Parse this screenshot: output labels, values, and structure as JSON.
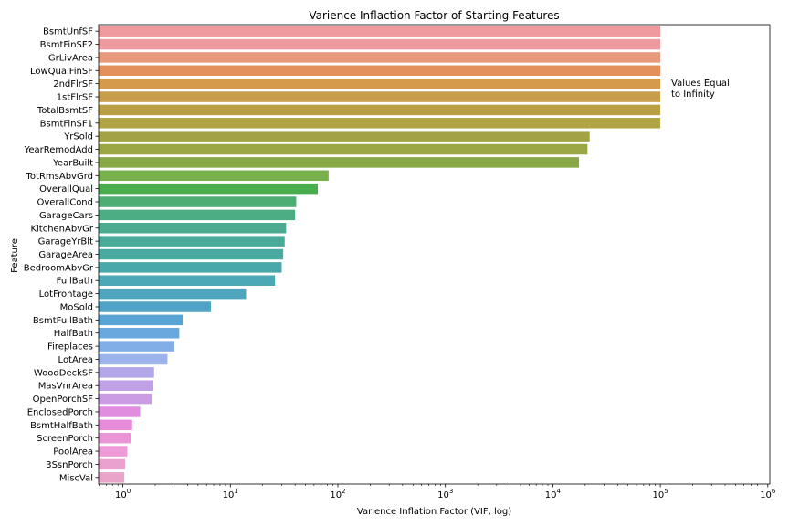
{
  "chart_data": {
    "type": "bar",
    "orientation": "horizontal",
    "title": "Varience Inflaction Factor of Starting Features",
    "xlabel": "Varience Inflation Factor (VIF, log)",
    "ylabel": "Feature",
    "xscale": "log",
    "xlim": [
      0.6,
      1000000
    ],
    "xticks": [
      {
        "value": 1,
        "base": "10",
        "exp": "0"
      },
      {
        "value": 10,
        "base": "10",
        "exp": "1"
      },
      {
        "value": 100,
        "base": "10",
        "exp": "2"
      },
      {
        "value": 1000,
        "base": "10",
        "exp": "3"
      },
      {
        "value": 10000,
        "base": "10",
        "exp": "4"
      },
      {
        "value": 100000,
        "base": "10",
        "exp": "5"
      },
      {
        "value": 1000000,
        "base": "10",
        "exp": "6"
      }
    ],
    "annotation": {
      "lines": [
        "Values Equal",
        "to Infinity"
      ]
    },
    "categories": [
      "BsmtUnfSF",
      "BsmtFinSF2",
      "GrLivArea",
      "LowQualFinSF",
      "2ndFlrSF",
      "1stFlrSF",
      "TotalBsmtSF",
      "BsmtFinSF1",
      "YrSold",
      "YearRemodAdd",
      "YearBuilt",
      "TotRmsAbvGrd",
      "OverallQual",
      "OverallCond",
      "GarageCars",
      "KitchenAbvGr",
      "GarageYrBlt",
      "GarageArea",
      "BedroomAbvGr",
      "FullBath",
      "LotFrontage",
      "MoSold",
      "BsmtFullBath",
      "HalfBath",
      "Fireplaces",
      "LotArea",
      "WoodDeckSF",
      "MasVnrArea",
      "OpenPorchSF",
      "EnclosedPorch",
      "BsmtHalfBath",
      "ScreenPorch",
      "PoolArea",
      "3SsnPorch",
      "MiscVal"
    ],
    "values": [
      100000,
      100000,
      100000,
      100000,
      100000,
      100000,
      100000,
      100000,
      22000,
      21000,
      17500,
      82,
      65,
      41,
      40,
      33,
      32,
      31,
      30,
      26,
      14,
      6.6,
      3.6,
      3.35,
      3.0,
      2.6,
      1.95,
      1.9,
      1.85,
      1.45,
      1.22,
      1.18,
      1.1,
      1.05,
      1.03
    ],
    "colors": [
      "#ee9a9e",
      "#ed9a9e",
      "#e89a7c",
      "#e3905b",
      "#d69a4b",
      "#c79d4a",
      "#baa044",
      "#b0a445",
      "#a3a245",
      "#9ba744",
      "#89a848",
      "#78b04c",
      "#49ad4d",
      "#4ead72",
      "#4cad84",
      "#4baa90",
      "#4aaa99",
      "#4aa9a1",
      "#49a8aa",
      "#4ba8b4",
      "#4ea5bd",
      "#50a3c4",
      "#58a4d4",
      "#68a8de",
      "#82aee7",
      "#9cb2eb",
      "#b3a7e8",
      "#c0a0e6",
      "#cb9ce4",
      "#e08de0",
      "#e68cd9",
      "#e996d7",
      "#ee9ad6",
      "#eba1cf",
      "#e8a5c9"
    ]
  }
}
